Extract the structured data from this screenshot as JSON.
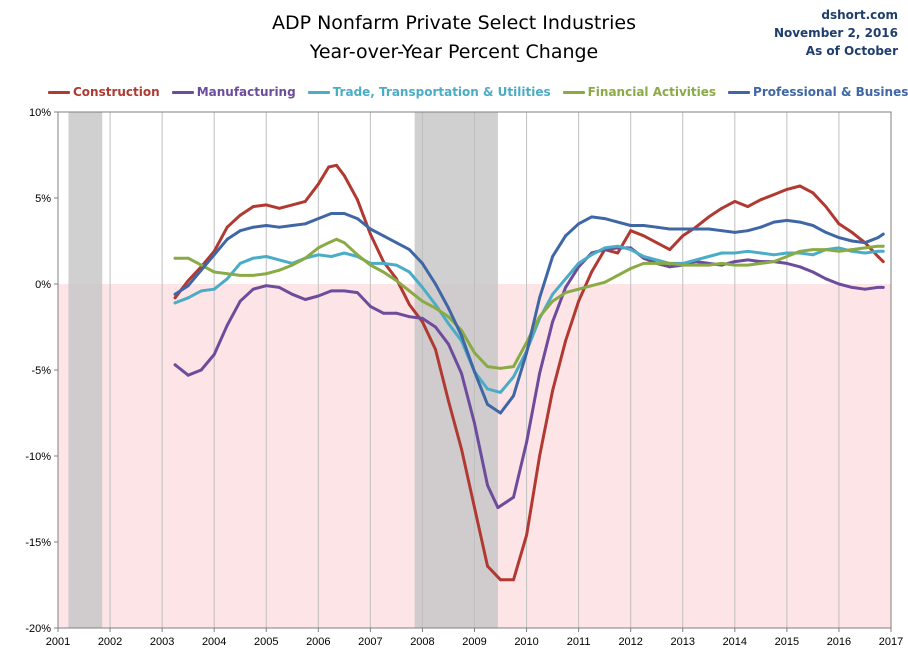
{
  "header": {
    "title_line1": "ADP Nonfarm Private Select Industries",
    "title_line2": "Year-over-Year Percent Change",
    "note_line1": "dshort.com",
    "note_line2": "November 2, 2016",
    "note_line3": "As of October"
  },
  "colors": {
    "construction": "#b03a32",
    "manufacturing": "#6d4c9c",
    "trade": "#4bacc6",
    "financial": "#8aaa45",
    "professional": "#3f67a5",
    "negative_zone": "#fde4e6",
    "recession": "#c8c8c8",
    "grid": "#bfbfbf"
  },
  "chart_data": {
    "type": "line",
    "title": "ADP Nonfarm Private Select Industries Year-over-Year Percent Change",
    "xlabel": "",
    "ylabel": "",
    "xlim": [
      2001,
      2017
    ],
    "ylim": [
      -20,
      10
    ],
    "x_ticks": [
      "2001",
      "2002",
      "2003",
      "2004",
      "2005",
      "2006",
      "2007",
      "2008",
      "2009",
      "2010",
      "2011",
      "2012",
      "2013",
      "2014",
      "2015",
      "2016",
      "2017"
    ],
    "y_ticks": [
      {
        "value": 10,
        "label": "10%"
      },
      {
        "value": 5,
        "label": "5%"
      },
      {
        "value": 0,
        "label": "0%"
      },
      {
        "value": -5,
        "label": "-5%"
      },
      {
        "value": -10,
        "label": "-10%"
      },
      {
        "value": -15,
        "label": "-15%"
      },
      {
        "value": -20,
        "label": "-20%"
      }
    ],
    "grid": "vertical lines at each year",
    "legend": "top",
    "recessions": [
      {
        "start": 2001.2,
        "end": 2001.85
      },
      {
        "start": 2007.85,
        "end": 2009.45
      }
    ],
    "series": [
      {
        "name": "Construction",
        "color_key": "construction",
        "points": [
          [
            2003.25,
            -0.8
          ],
          [
            2003.5,
            0.2
          ],
          [
            2003.75,
            1.0
          ],
          [
            2004.0,
            1.9
          ],
          [
            2004.25,
            3.3
          ],
          [
            2004.5,
            4.0
          ],
          [
            2004.75,
            4.5
          ],
          [
            2005.0,
            4.6
          ],
          [
            2005.25,
            4.4
          ],
          [
            2005.5,
            4.6
          ],
          [
            2005.75,
            4.8
          ],
          [
            2006.0,
            5.8
          ],
          [
            2006.2,
            6.8
          ],
          [
            2006.35,
            6.9
          ],
          [
            2006.5,
            6.3
          ],
          [
            2006.75,
            4.9
          ],
          [
            2007.0,
            2.9
          ],
          [
            2007.25,
            1.3
          ],
          [
            2007.5,
            0.3
          ],
          [
            2007.75,
            -1.2
          ],
          [
            2008.0,
            -2.2
          ],
          [
            2008.25,
            -3.8
          ],
          [
            2008.5,
            -6.8
          ],
          [
            2008.75,
            -9.6
          ],
          [
            2009.0,
            -13.0
          ],
          [
            2009.25,
            -16.4
          ],
          [
            2009.5,
            -17.2
          ],
          [
            2009.75,
            -17.2
          ],
          [
            2010.0,
            -14.6
          ],
          [
            2010.25,
            -10.0
          ],
          [
            2010.5,
            -6.2
          ],
          [
            2010.75,
            -3.3
          ],
          [
            2011.0,
            -1.0
          ],
          [
            2011.25,
            0.7
          ],
          [
            2011.5,
            2.0
          ],
          [
            2011.75,
            1.8
          ],
          [
            2012.0,
            3.1
          ],
          [
            2012.25,
            2.8
          ],
          [
            2012.5,
            2.4
          ],
          [
            2012.75,
            2.0
          ],
          [
            2013.0,
            2.8
          ],
          [
            2013.25,
            3.3
          ],
          [
            2013.5,
            3.9
          ],
          [
            2013.75,
            4.4
          ],
          [
            2014.0,
            4.8
          ],
          [
            2014.25,
            4.5
          ],
          [
            2014.5,
            4.9
          ],
          [
            2014.75,
            5.2
          ],
          [
            2015.0,
            5.5
          ],
          [
            2015.25,
            5.7
          ],
          [
            2015.5,
            5.3
          ],
          [
            2015.75,
            4.5
          ],
          [
            2016.0,
            3.5
          ],
          [
            2016.25,
            3.0
          ],
          [
            2016.5,
            2.4
          ],
          [
            2016.75,
            1.6
          ],
          [
            2016.85,
            1.3
          ]
        ]
      },
      {
        "name": "Manufacturing",
        "color_key": "manufacturing",
        "points": [
          [
            2003.25,
            -4.7
          ],
          [
            2003.5,
            -5.3
          ],
          [
            2003.75,
            -5.0
          ],
          [
            2004.0,
            -4.1
          ],
          [
            2004.25,
            -2.4
          ],
          [
            2004.5,
            -1.0
          ],
          [
            2004.75,
            -0.3
          ],
          [
            2005.0,
            -0.1
          ],
          [
            2005.25,
            -0.2
          ],
          [
            2005.5,
            -0.6
          ],
          [
            2005.75,
            -0.9
          ],
          [
            2006.0,
            -0.7
          ],
          [
            2006.25,
            -0.4
          ],
          [
            2006.5,
            -0.4
          ],
          [
            2006.75,
            -0.5
          ],
          [
            2007.0,
            -1.3
          ],
          [
            2007.25,
            -1.7
          ],
          [
            2007.5,
            -1.7
          ],
          [
            2007.75,
            -1.9
          ],
          [
            2008.0,
            -2.0
          ],
          [
            2008.25,
            -2.5
          ],
          [
            2008.5,
            -3.5
          ],
          [
            2008.75,
            -5.2
          ],
          [
            2009.0,
            -8.1
          ],
          [
            2009.25,
            -11.7
          ],
          [
            2009.45,
            -13.0
          ],
          [
            2009.75,
            -12.4
          ],
          [
            2010.0,
            -9.2
          ],
          [
            2010.25,
            -5.2
          ],
          [
            2010.5,
            -2.2
          ],
          [
            2010.75,
            -0.2
          ],
          [
            2011.0,
            1.0
          ],
          [
            2011.25,
            1.8
          ],
          [
            2011.5,
            2.0
          ],
          [
            2011.75,
            2.1
          ],
          [
            2012.0,
            2.1
          ],
          [
            2012.25,
            1.5
          ],
          [
            2012.5,
            1.2
          ],
          [
            2012.75,
            1.0
          ],
          [
            2013.0,
            1.1
          ],
          [
            2013.25,
            1.3
          ],
          [
            2013.5,
            1.2
          ],
          [
            2013.75,
            1.1
          ],
          [
            2014.0,
            1.3
          ],
          [
            2014.25,
            1.4
          ],
          [
            2014.5,
            1.3
          ],
          [
            2014.75,
            1.3
          ],
          [
            2015.0,
            1.2
          ],
          [
            2015.25,
            1.0
          ],
          [
            2015.5,
            0.7
          ],
          [
            2015.75,
            0.3
          ],
          [
            2016.0,
            0.0
          ],
          [
            2016.25,
            -0.2
          ],
          [
            2016.5,
            -0.3
          ],
          [
            2016.75,
            -0.2
          ],
          [
            2016.85,
            -0.2
          ]
        ]
      },
      {
        "name": "Trade, Transportation & Utilities",
        "color_key": "trade",
        "points": [
          [
            2003.25,
            -1.1
          ],
          [
            2003.5,
            -0.8
          ],
          [
            2003.75,
            -0.4
          ],
          [
            2004.0,
            -0.3
          ],
          [
            2004.25,
            0.3
          ],
          [
            2004.5,
            1.2
          ],
          [
            2004.75,
            1.5
          ],
          [
            2005.0,
            1.6
          ],
          [
            2005.25,
            1.4
          ],
          [
            2005.5,
            1.2
          ],
          [
            2005.75,
            1.5
          ],
          [
            2006.0,
            1.7
          ],
          [
            2006.25,
            1.6
          ],
          [
            2006.5,
            1.8
          ],
          [
            2006.75,
            1.6
          ],
          [
            2007.0,
            1.2
          ],
          [
            2007.25,
            1.2
          ],
          [
            2007.5,
            1.1
          ],
          [
            2007.75,
            0.7
          ],
          [
            2008.0,
            -0.2
          ],
          [
            2008.25,
            -1.2
          ],
          [
            2008.5,
            -2.3
          ],
          [
            2008.75,
            -3.3
          ],
          [
            2009.0,
            -5.1
          ],
          [
            2009.25,
            -6.1
          ],
          [
            2009.5,
            -6.3
          ],
          [
            2009.75,
            -5.4
          ],
          [
            2010.0,
            -3.9
          ],
          [
            2010.25,
            -2.0
          ],
          [
            2010.5,
            -0.6
          ],
          [
            2010.75,
            0.3
          ],
          [
            2011.0,
            1.2
          ],
          [
            2011.25,
            1.7
          ],
          [
            2011.5,
            2.1
          ],
          [
            2011.75,
            2.2
          ],
          [
            2012.0,
            2.0
          ],
          [
            2012.25,
            1.6
          ],
          [
            2012.5,
            1.4
          ],
          [
            2012.75,
            1.2
          ],
          [
            2013.0,
            1.2
          ],
          [
            2013.25,
            1.4
          ],
          [
            2013.5,
            1.6
          ],
          [
            2013.75,
            1.8
          ],
          [
            2014.0,
            1.8
          ],
          [
            2014.25,
            1.9
          ],
          [
            2014.5,
            1.8
          ],
          [
            2014.75,
            1.7
          ],
          [
            2015.0,
            1.8
          ],
          [
            2015.25,
            1.8
          ],
          [
            2015.5,
            1.7
          ],
          [
            2015.75,
            2.0
          ],
          [
            2016.0,
            2.1
          ],
          [
            2016.25,
            1.9
          ],
          [
            2016.5,
            1.8
          ],
          [
            2016.75,
            1.9
          ],
          [
            2016.85,
            1.9
          ]
        ]
      },
      {
        "name": "Financial Activities",
        "color_key": "financial",
        "points": [
          [
            2003.25,
            1.5
          ],
          [
            2003.5,
            1.5
          ],
          [
            2003.75,
            1.1
          ],
          [
            2004.0,
            0.7
          ],
          [
            2004.25,
            0.6
          ],
          [
            2004.5,
            0.5
          ],
          [
            2004.75,
            0.5
          ],
          [
            2005.0,
            0.6
          ],
          [
            2005.25,
            0.8
          ],
          [
            2005.5,
            1.1
          ],
          [
            2005.75,
            1.5
          ],
          [
            2006.0,
            2.1
          ],
          [
            2006.2,
            2.4
          ],
          [
            2006.35,
            2.6
          ],
          [
            2006.5,
            2.4
          ],
          [
            2006.75,
            1.7
          ],
          [
            2007.0,
            1.1
          ],
          [
            2007.25,
            0.7
          ],
          [
            2007.5,
            0.2
          ],
          [
            2007.75,
            -0.4
          ],
          [
            2008.0,
            -1.0
          ],
          [
            2008.25,
            -1.4
          ],
          [
            2008.5,
            -1.9
          ],
          [
            2008.75,
            -2.7
          ],
          [
            2009.0,
            -4.0
          ],
          [
            2009.25,
            -4.8
          ],
          [
            2009.5,
            -4.9
          ],
          [
            2009.75,
            -4.8
          ],
          [
            2010.0,
            -3.4
          ],
          [
            2010.25,
            -1.9
          ],
          [
            2010.5,
            -1.0
          ],
          [
            2010.75,
            -0.5
          ],
          [
            2011.0,
            -0.3
          ],
          [
            2011.25,
            -0.1
          ],
          [
            2011.5,
            0.1
          ],
          [
            2011.75,
            0.5
          ],
          [
            2012.0,
            0.9
          ],
          [
            2012.25,
            1.2
          ],
          [
            2012.5,
            1.2
          ],
          [
            2012.75,
            1.2
          ],
          [
            2013.0,
            1.1
          ],
          [
            2013.25,
            1.1
          ],
          [
            2013.5,
            1.1
          ],
          [
            2013.75,
            1.2
          ],
          [
            2014.0,
            1.1
          ],
          [
            2014.25,
            1.1
          ],
          [
            2014.5,
            1.2
          ],
          [
            2014.75,
            1.3
          ],
          [
            2015.0,
            1.6
          ],
          [
            2015.25,
            1.9
          ],
          [
            2015.5,
            2.0
          ],
          [
            2015.75,
            2.0
          ],
          [
            2016.0,
            1.9
          ],
          [
            2016.25,
            2.0
          ],
          [
            2016.5,
            2.1
          ],
          [
            2016.75,
            2.2
          ],
          [
            2016.85,
            2.2
          ]
        ]
      },
      {
        "name": "Professional & Business",
        "color_key": "professional",
        "points": [
          [
            2003.25,
            -0.6
          ],
          [
            2003.5,
            -0.1
          ],
          [
            2003.75,
            0.8
          ],
          [
            2004.0,
            1.7
          ],
          [
            2004.25,
            2.6
          ],
          [
            2004.5,
            3.1
          ],
          [
            2004.75,
            3.3
          ],
          [
            2005.0,
            3.4
          ],
          [
            2005.25,
            3.3
          ],
          [
            2005.5,
            3.4
          ],
          [
            2005.75,
            3.5
          ],
          [
            2006.0,
            3.8
          ],
          [
            2006.25,
            4.1
          ],
          [
            2006.5,
            4.1
          ],
          [
            2006.75,
            3.8
          ],
          [
            2007.0,
            3.2
          ],
          [
            2007.25,
            2.8
          ],
          [
            2007.5,
            2.4
          ],
          [
            2007.75,
            2.0
          ],
          [
            2008.0,
            1.2
          ],
          [
            2008.25,
            0.0
          ],
          [
            2008.5,
            -1.4
          ],
          [
            2008.75,
            -3.0
          ],
          [
            2009.0,
            -5.1
          ],
          [
            2009.25,
            -7.0
          ],
          [
            2009.5,
            -7.5
          ],
          [
            2009.75,
            -6.5
          ],
          [
            2010.0,
            -4.0
          ],
          [
            2010.25,
            -0.8
          ],
          [
            2010.5,
            1.6
          ],
          [
            2010.75,
            2.8
          ],
          [
            2011.0,
            3.5
          ],
          [
            2011.25,
            3.9
          ],
          [
            2011.5,
            3.8
          ],
          [
            2011.75,
            3.6
          ],
          [
            2012.0,
            3.4
          ],
          [
            2012.25,
            3.4
          ],
          [
            2012.5,
            3.3
          ],
          [
            2012.75,
            3.2
          ],
          [
            2013.0,
            3.2
          ],
          [
            2013.25,
            3.2
          ],
          [
            2013.5,
            3.2
          ],
          [
            2013.75,
            3.1
          ],
          [
            2014.0,
            3.0
          ],
          [
            2014.25,
            3.1
          ],
          [
            2014.5,
            3.3
          ],
          [
            2014.75,
            3.6
          ],
          [
            2015.0,
            3.7
          ],
          [
            2015.25,
            3.6
          ],
          [
            2015.5,
            3.4
          ],
          [
            2015.75,
            3.0
          ],
          [
            2016.0,
            2.7
          ],
          [
            2016.25,
            2.5
          ],
          [
            2016.5,
            2.4
          ],
          [
            2016.75,
            2.7
          ],
          [
            2016.85,
            2.9
          ]
        ]
      }
    ]
  }
}
